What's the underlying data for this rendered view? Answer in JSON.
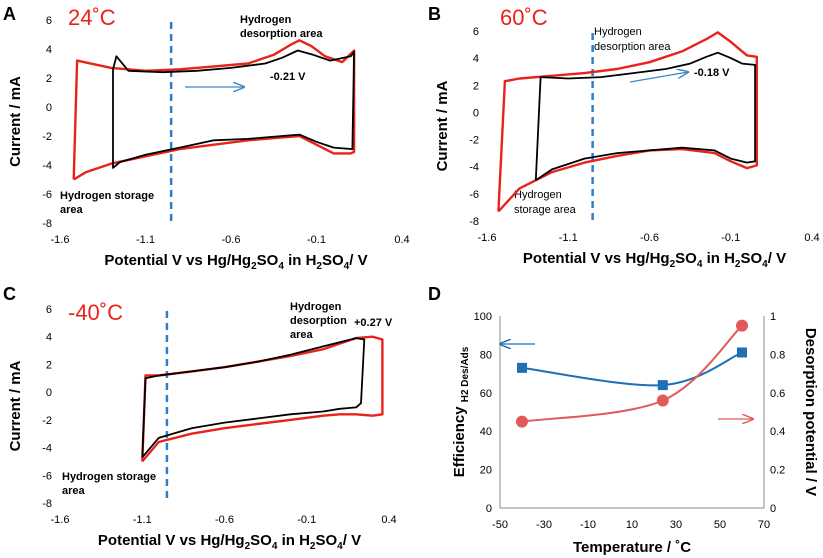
{
  "chart_data": [
    {
      "panel": "A",
      "type": "line",
      "temperature_label": "24˚C",
      "xlabel_parts": [
        "Potential V vs Hg/Hg",
        "2",
        "SO",
        "4",
        " in H",
        "2",
        "SO",
        "4",
        "/ V"
      ],
      "ylabel": "Current / mA",
      "xlim": [
        -1.6,
        0.4
      ],
      "ylim": [
        -8,
        6
      ],
      "xticks": [
        "-1.6",
        "-1.1",
        "-0.6",
        "-0.1",
        "0.4"
      ],
      "yticks": [
        "-8",
        "-6",
        "-4",
        "-2",
        "0",
        "2",
        "4",
        "6"
      ],
      "dashed_x": -0.95,
      "annotations": {
        "desorption": [
          "Hydrogen",
          "desorption area"
        ],
        "storage": [
          "Hydrogen storage",
          "area"
        ],
        "peak": "-0.21 V"
      },
      "series": [
        {
          "name": "black",
          "color": "#000000",
          "x": [
            -1.29,
            -1.27,
            -1.2,
            -1.0,
            -0.8,
            -0.6,
            -0.4,
            -0.3,
            -0.21,
            -0.12,
            -0.02,
            0.1,
            0.12,
            0.11,
            0.0,
            -0.1,
            -0.2,
            -0.3,
            -0.5,
            -0.7,
            -0.9,
            -1.1,
            -1.25,
            -1.29,
            -1.29
          ],
          "y": [
            2.6,
            3.5,
            2.5,
            2.4,
            2.5,
            2.7,
            3.0,
            3.4,
            3.9,
            3.6,
            3.2,
            3.5,
            3.8,
            -2.9,
            -2.8,
            -2.4,
            -1.9,
            -2.0,
            -2.2,
            -2.3,
            -2.8,
            -3.3,
            -3.8,
            -4.2,
            2.6
          ]
        },
        {
          "name": "red",
          "color": "#e8231b",
          "x": [
            -1.52,
            -1.5,
            -1.46,
            -1.3,
            -1.1,
            -0.9,
            -0.7,
            -0.5,
            -0.35,
            -0.25,
            -0.2,
            -0.13,
            -0.05,
            0.05,
            0.12,
            0.12,
            0.1,
            0.0,
            -0.1,
            -0.2,
            -0.3,
            -0.5,
            -0.7,
            -0.9,
            -1.1,
            -1.3,
            -1.45,
            -1.52,
            -1.52
          ],
          "y": [
            -5.0,
            3.2,
            3.1,
            2.7,
            2.5,
            2.6,
            2.8,
            3.0,
            3.6,
            4.3,
            4.6,
            4.2,
            3.5,
            3.1,
            3.9,
            -3.1,
            -3.2,
            -3.2,
            -2.6,
            -2.0,
            -2.1,
            -2.3,
            -2.6,
            -2.9,
            -3.4,
            -3.9,
            -4.5,
            -5.0,
            -5.0
          ]
        }
      ]
    },
    {
      "panel": "B",
      "type": "line",
      "temperature_label": "60˚C",
      "xlabel_parts": [
        "Potential V vs Hg/Hg",
        "2",
        "SO",
        "4",
        " in H",
        "2",
        "SO",
        "4",
        "/ V"
      ],
      "ylabel": "Current / mA",
      "xlim": [
        -1.6,
        0.4
      ],
      "ylim": [
        -8,
        6
      ],
      "xticks": [
        "-1.6",
        "-1.1",
        "-0.6",
        "-0.1",
        "0.4"
      ],
      "yticks": [
        "-8",
        "-6",
        "-4",
        "-2",
        "0",
        "2",
        "4",
        "6"
      ],
      "dashed_x": -0.95,
      "annotations": {
        "desorption": [
          "Hydrogen",
          "desorption area"
        ],
        "storage": [
          "Hydrogen",
          "storage area"
        ],
        "peak": "-0.18 V"
      },
      "series": [
        {
          "name": "black",
          "color": "#000000",
          "x": [
            -1.3,
            -1.27,
            -1.1,
            -0.9,
            -0.7,
            -0.5,
            -0.35,
            -0.25,
            -0.18,
            -0.1,
            -0.03,
            0.05,
            0.05,
            0.0,
            -0.1,
            -0.2,
            -0.4,
            -0.6,
            -0.8,
            -1.0,
            -1.2,
            -1.3,
            -1.3
          ],
          "y": [
            -5.0,
            2.6,
            2.5,
            2.6,
            2.9,
            3.2,
            3.6,
            4.1,
            4.4,
            4.0,
            3.6,
            3.5,
            -3.6,
            -3.7,
            -3.4,
            -2.8,
            -2.6,
            -2.8,
            -3.0,
            -3.4,
            -4.2,
            -5.0,
            -5.0
          ]
        },
        {
          "name": "red",
          "color": "#e8231b",
          "x": [
            -1.53,
            -1.49,
            -1.4,
            -1.2,
            -1.0,
            -0.8,
            -0.6,
            -0.4,
            -0.25,
            -0.18,
            -0.1,
            0.0,
            0.06,
            0.06,
            0.0,
            -0.1,
            -0.2,
            -0.4,
            -0.6,
            -0.8,
            -1.0,
            -1.2,
            -1.4,
            -1.53,
            -1.53
          ],
          "y": [
            -7.3,
            2.3,
            2.5,
            2.7,
            2.9,
            3.2,
            3.7,
            4.5,
            5.4,
            5.9,
            5.2,
            4.2,
            4.1,
            -3.9,
            -4.1,
            -3.6,
            -3.0,
            -2.7,
            -2.8,
            -3.2,
            -3.7,
            -4.4,
            -5.6,
            -7.3,
            -7.3
          ]
        }
      ]
    },
    {
      "panel": "C",
      "type": "line",
      "temperature_label": "-40˚C",
      "xlabel_parts": [
        "Potential V vs Hg/Hg",
        "2",
        "SO",
        "4",
        " in H",
        "2",
        "SO",
        "4",
        "/ V"
      ],
      "ylabel": "Current / mA",
      "xlim": [
        -1.6,
        0.4
      ],
      "ylim": [
        -8,
        6
      ],
      "xticks": [
        "-1.6",
        "-1.1",
        "-0.6",
        "-0.1",
        "0.4"
      ],
      "yticks": [
        "-8",
        "-6",
        "-4",
        "-2",
        "0",
        "2",
        "4",
        "6"
      ],
      "dashed_x": -0.95,
      "annotations": {
        "desorption": [
          "Hydrogen",
          "desorption",
          "area"
        ],
        "storage": [
          "Hydrogen storage",
          "area"
        ],
        "peak": "+0.27 V"
      },
      "series": [
        {
          "name": "black",
          "color": "#000000",
          "x": [
            -1.1,
            -1.08,
            -1.0,
            -0.8,
            -0.6,
            -0.4,
            -0.2,
            0.0,
            0.1,
            0.2,
            0.25,
            0.23,
            0.2,
            0.1,
            0.0,
            -0.2,
            -0.4,
            -0.6,
            -0.8,
            -1.0,
            -1.1,
            -1.1
          ],
          "y": [
            -4.7,
            1.0,
            1.2,
            1.5,
            1.8,
            2.2,
            2.7,
            3.3,
            3.6,
            3.9,
            3.8,
            -0.8,
            -1.1,
            -1.2,
            -1.4,
            -1.6,
            -1.9,
            -2.2,
            -2.6,
            -3.3,
            -4.7,
            -4.7
          ]
        },
        {
          "name": "red",
          "color": "#e8231b",
          "x": [
            -1.1,
            -1.08,
            -1.0,
            -0.8,
            -0.6,
            -0.4,
            -0.2,
            0.0,
            0.1,
            0.2,
            0.3,
            0.33,
            0.36,
            0.36,
            0.3,
            0.2,
            0.1,
            0.0,
            -0.2,
            -0.4,
            -0.6,
            -0.8,
            -1.0,
            -1.1,
            -1.1
          ],
          "y": [
            -5.0,
            1.2,
            1.2,
            1.5,
            1.8,
            2.2,
            2.6,
            3.1,
            3.5,
            3.9,
            4.0,
            3.9,
            3.8,
            -1.6,
            -1.7,
            -1.6,
            -1.6,
            -1.7,
            -2.0,
            -2.3,
            -2.6,
            -3.0,
            -3.6,
            -5.0,
            -5.0
          ]
        }
      ]
    },
    {
      "panel": "D",
      "type": "line",
      "xlabel": "Temperature / ˚C",
      "ylabel_left_main": "Efficiency",
      "ylabel_left_sub": "H2 Des/Ads",
      "ylabel_right": "Desorption potential / V",
      "xlim": [
        -50,
        70
      ],
      "ylim_left": [
        0,
        100
      ],
      "ylim_right": [
        0,
        1
      ],
      "xticks": [
        "-50",
        "-30",
        "-10",
        "10",
        "30",
        "50",
        "70"
      ],
      "yticks_left": [
        "0",
        "20",
        "40",
        "60",
        "80",
        "100"
      ],
      "yticks_right": [
        "0",
        "0.2",
        "0.4",
        "0.6",
        "0.8",
        "1"
      ],
      "series": [
        {
          "name": "Efficiency",
          "axis": "left",
          "color": "#1f6fb5",
          "marker": "square",
          "x": [
            -40,
            24,
            60
          ],
          "y": [
            73,
            64,
            81
          ]
        },
        {
          "name": "Desorption potential",
          "axis": "right",
          "color": "#e05a5a",
          "marker": "circle",
          "x": [
            -40,
            24,
            60
          ],
          "y": [
            0.45,
            0.56,
            0.95
          ]
        }
      ]
    }
  ]
}
